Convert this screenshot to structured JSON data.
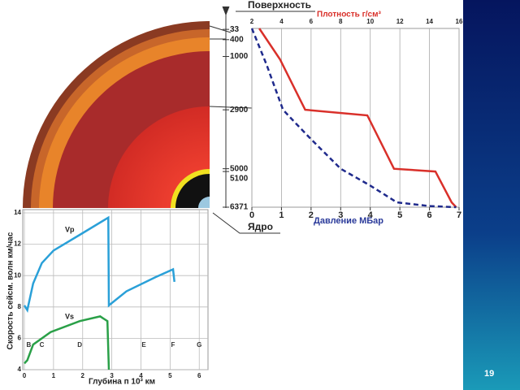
{
  "figure": {
    "surface_label": "Поверхность",
    "core_label": "Ядро"
  },
  "slide_number": "19",
  "chart_data": [
    {
      "type": "line",
      "xlabel": "Плотность г/см³",
      "x2label": "Давление МБар",
      "xlim": [
        2,
        16
      ],
      "xticks": [
        2,
        4,
        6,
        8,
        10,
        12,
        14,
        16
      ],
      "x2lim": [
        0,
        7
      ],
      "x2ticks": [
        0,
        1,
        2,
        3,
        4,
        5,
        6,
        7
      ],
      "ylim": [
        0,
        6371
      ],
      "y_inverted": true,
      "yticks": [
        33,
        400,
        1000,
        2900,
        5000,
        5100,
        6371
      ],
      "grid": true,
      "series": [
        {
          "color": "#d9302a",
          "x": [
            2.5,
            3.9,
            5.6,
            9.8,
            11.6,
            14.4,
            15.5,
            15.8
          ],
          "values": [
            0,
            1100,
            2900,
            3100,
            5000,
            5100,
            6200,
            6371
          ]
        },
        {
          "color": "#1f2a8c",
          "axis": "x2",
          "dashed": true,
          "x": [
            0,
            0.5,
            1.05,
            1.5,
            2.0,
            3.0,
            4.0,
            4.9,
            6.0,
            6.9
          ],
          "values": [
            0,
            1300,
            2900,
            3400,
            3950,
            5000,
            5600,
            6200,
            6330,
            6371
          ]
        }
      ]
    },
    {
      "type": "line",
      "xlabel": "Глубина п 10³ км",
      "ylabel": "Скорость сейсм. волн км/час",
      "xlim": [
        0,
        6.3
      ],
      "xticks": [
        0,
        1,
        2,
        3,
        4,
        5,
        6
      ],
      "ylim": [
        4,
        14
      ],
      "yticks": [
        4,
        6,
        8,
        10,
        12,
        14
      ],
      "grid": true,
      "series": [
        {
          "name": "Vp",
          "color": "#2aa0d8",
          "x": [
            0,
            0.1,
            0.3,
            0.6,
            1.0,
            1.9,
            2.88,
            2.9,
            3.5,
            4.5,
            5.1,
            5.15
          ],
          "values": [
            8.1,
            7.8,
            9.5,
            10.8,
            11.6,
            12.6,
            13.7,
            8.1,
            9.0,
            9.9,
            10.4,
            9.6
          ]
        },
        {
          "name": "Vs",
          "color": "#2aa048",
          "x": [
            0,
            0.1,
            0.3,
            0.9,
            1.9,
            2.6,
            2.85,
            2.9
          ],
          "values": [
            4.4,
            4.6,
            5.6,
            6.4,
            7.1,
            7.4,
            7.1,
            4.0
          ]
        }
      ],
      "annotations": [
        {
          "text": "B",
          "x": 0.15
        },
        {
          "text": "C",
          "x": 0.6
        },
        {
          "text": "D",
          "x": 1.9
        },
        {
          "text": "E",
          "x": 4.1
        },
        {
          "text": "F",
          "x": 5.1
        },
        {
          "text": "G",
          "x": 6.0
        }
      ]
    }
  ]
}
